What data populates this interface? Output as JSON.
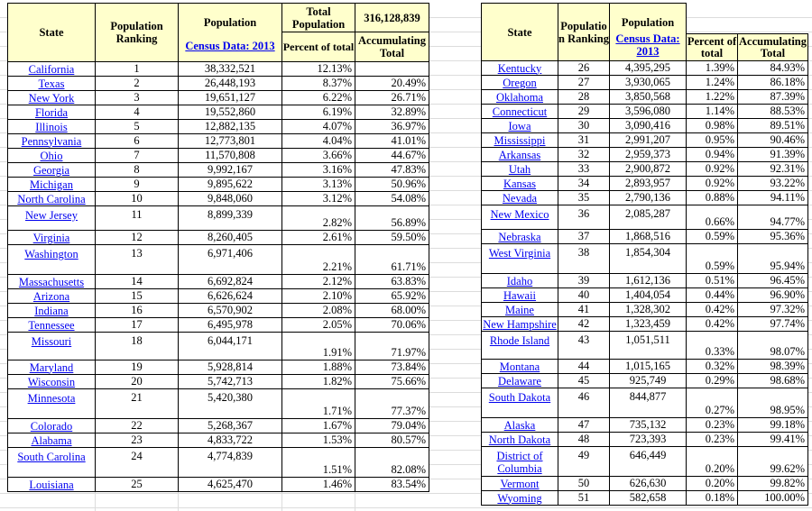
{
  "colors": {
    "header_bg": "#ffffcc",
    "link_blue": "#0000ee",
    "border": "#000000",
    "gridline": "#dcdcdc"
  },
  "header": {
    "state": "State",
    "ranking": "Population Ranking",
    "population": "Population",
    "census_link": "Census Data: 2013",
    "total_population_label": "Total Population",
    "total_population_value": "316,128,839",
    "percent": "Percent of total",
    "accumulating": "Accumulating Total"
  },
  "left_table": {
    "rows": [
      {
        "state": "California",
        "rank": "1",
        "population": "38,332,521",
        "percent": "12.13%",
        "accumulating": ""
      },
      {
        "state": "Texas",
        "rank": "2",
        "population": "26,448,193",
        "percent": "8.37%",
        "accumulating": "20.49%"
      },
      {
        "state": "New York",
        "rank": "3",
        "population": "19,651,127",
        "percent": "6.22%",
        "accumulating": "26.71%"
      },
      {
        "state": "Florida",
        "rank": "4",
        "population": "19,552,860",
        "percent": "6.19%",
        "accumulating": "32.89%"
      },
      {
        "state": "Illinois",
        "rank": "5",
        "population": "12,882,135",
        "percent": "4.07%",
        "accumulating": "36.97%"
      },
      {
        "state": "Pennsylvania",
        "rank": "6",
        "population": "12,773,801",
        "percent": "4.04%",
        "accumulating": "41.01%"
      },
      {
        "state": "Ohio",
        "rank": "7",
        "population": "11,570,808",
        "percent": "3.66%",
        "accumulating": "44.67%"
      },
      {
        "state": "Georgia",
        "rank": "8",
        "population": "9,992,167",
        "percent": "3.16%",
        "accumulating": "47.83%"
      },
      {
        "state": "Michigan",
        "rank": "9",
        "population": "9,895,622",
        "percent": "3.13%",
        "accumulating": "50.96%"
      },
      {
        "state": "North Carolina",
        "rank": "10",
        "population": "9,848,060",
        "percent": "3.12%",
        "accumulating": "54.08%"
      },
      {
        "state": "New Jersey",
        "rank": "11",
        "population": "8,899,339",
        "percent": "2.82%",
        "accumulating": "56.89%",
        "tall": true
      },
      {
        "state": "Virginia",
        "rank": "12",
        "population": "8,260,405",
        "percent": "2.61%",
        "accumulating": "59.50%"
      },
      {
        "state": "Washington",
        "rank": "13",
        "population": "6,971,406",
        "percent": "2.21%",
        "accumulating": "61.71%",
        "tall": true
      },
      {
        "state": "Massachusetts",
        "rank": "14",
        "population": "6,692,824",
        "percent": "2.12%",
        "accumulating": "63.83%"
      },
      {
        "state": "Arizona",
        "rank": "15",
        "population": "6,626,624",
        "percent": "2.10%",
        "accumulating": "65.92%"
      },
      {
        "state": "Indiana",
        "rank": "16",
        "population": "6,570,902",
        "percent": "2.08%",
        "accumulating": "68.00%"
      },
      {
        "state": "Tennessee",
        "rank": "17",
        "population": "6,495,978",
        "percent": "2.05%",
        "accumulating": "70.06%"
      },
      {
        "state": "Missouri",
        "rank": "18",
        "population": "6,044,171",
        "percent": "1.91%",
        "accumulating": "71.97%",
        "tall": true
      },
      {
        "state": "Maryland",
        "rank": "19",
        "population": "5,928,814",
        "percent": "1.88%",
        "accumulating": "73.84%"
      },
      {
        "state": "Wisconsin",
        "rank": "20",
        "population": "5,742,713",
        "percent": "1.82%",
        "accumulating": "75.66%"
      },
      {
        "state": "Minnesota",
        "rank": "21",
        "population": "5,420,380",
        "percent": "1.71%",
        "accumulating": "77.37%",
        "tall": true
      },
      {
        "state": "Colorado",
        "rank": "22",
        "population": "5,268,367",
        "percent": "1.67%",
        "accumulating": "79.04%"
      },
      {
        "state": "Alabama",
        "rank": "23",
        "population": "4,833,722",
        "percent": "1.53%",
        "accumulating": "80.57%"
      },
      {
        "state": "South Carolina",
        "rank": "24",
        "population": "4,774,839",
        "percent": "1.51%",
        "accumulating": "82.08%",
        "tall": true
      },
      {
        "state": "Louisiana",
        "rank": "25",
        "population": "4,625,470",
        "percent": "1.46%",
        "accumulating": "83.54%"
      }
    ]
  },
  "right_table": {
    "rows": [
      {
        "state": "Kentucky",
        "rank": "26",
        "population": "4,395,295",
        "percent": "1.39%",
        "accumulating": "84.93%"
      },
      {
        "state": "Oregon",
        "rank": "27",
        "population": "3,930,065",
        "percent": "1.24%",
        "accumulating": "86.18%"
      },
      {
        "state": "Oklahoma",
        "rank": "28",
        "population": "3,850,568",
        "percent": "1.22%",
        "accumulating": "87.39%"
      },
      {
        "state": "Connecticut",
        "rank": "29",
        "population": "3,596,080",
        "percent": "1.14%",
        "accumulating": "88.53%"
      },
      {
        "state": "Iowa",
        "rank": "30",
        "population": "3,090,416",
        "percent": "0.98%",
        "accumulating": "89.51%"
      },
      {
        "state": "Mississippi",
        "rank": "31",
        "population": "2,991,207",
        "percent": "0.95%",
        "accumulating": "90.46%"
      },
      {
        "state": "Arkansas",
        "rank": "32",
        "population": "2,959,373",
        "percent": "0.94%",
        "accumulating": "91.39%"
      },
      {
        "state": "Utah",
        "rank": "33",
        "population": "2,900,872",
        "percent": "0.92%",
        "accumulating": "92.31%"
      },
      {
        "state": "Kansas",
        "rank": "34",
        "population": "2,893,957",
        "percent": "0.92%",
        "accumulating": "93.22%"
      },
      {
        "state": "Nevada",
        "rank": "35",
        "population": "2,790,136",
        "percent": "0.88%",
        "accumulating": "94.11%"
      },
      {
        "state": "New Mexico",
        "rank": "36",
        "population": "2,085,287",
        "percent": "0.66%",
        "accumulating": "94.77%",
        "tall": true
      },
      {
        "state": "Nebraska",
        "rank": "37",
        "population": "1,868,516",
        "percent": "0.59%",
        "accumulating": "95.36%"
      },
      {
        "state": "West Virginia",
        "rank": "38",
        "population": "1,854,304",
        "percent": "0.59%",
        "accumulating": "95.94%",
        "tall": true
      },
      {
        "state": "Idaho",
        "rank": "39",
        "population": "1,612,136",
        "percent": "0.51%",
        "accumulating": "96.45%"
      },
      {
        "state": "Hawaii",
        "rank": "40",
        "population": "1,404,054",
        "percent": "0.44%",
        "accumulating": "96.90%"
      },
      {
        "state": "Maine",
        "rank": "41",
        "population": "1,328,302",
        "percent": "0.42%",
        "accumulating": "97.32%"
      },
      {
        "state": "New Hampshire",
        "rank": "42",
        "population": "1,323,459",
        "percent": "0.42%",
        "accumulating": "97.74%"
      },
      {
        "state": "Rhode Island",
        "rank": "43",
        "population": "1,051,511",
        "percent": "0.33%",
        "accumulating": "98.07%",
        "tall": true
      },
      {
        "state": "Montana",
        "rank": "44",
        "population": "1,015,165",
        "percent": "0.32%",
        "accumulating": "98.39%"
      },
      {
        "state": "Delaware",
        "rank": "45",
        "population": "925,749",
        "percent": "0.29%",
        "accumulating": "98.68%"
      },
      {
        "state": "South Dakota",
        "rank": "46",
        "population": "844,877",
        "percent": "0.27%",
        "accumulating": "98.95%",
        "tall": true
      },
      {
        "state": "Alaska",
        "rank": "47",
        "population": "735,132",
        "percent": "0.23%",
        "accumulating": "99.18%"
      },
      {
        "state": "North Dakota",
        "rank": "48",
        "population": "723,393",
        "percent": "0.23%",
        "accumulating": "99.41%"
      },
      {
        "state": "District of Columbia",
        "rank": "49",
        "population": "646,449",
        "percent": "0.20%",
        "accumulating": "99.62%",
        "tall": true
      },
      {
        "state": "Vermont",
        "rank": "50",
        "population": "626,630",
        "percent": "0.20%",
        "accumulating": "99.82%"
      },
      {
        "state": "Wyoming",
        "rank": "51",
        "population": "582,658",
        "percent": "0.18%",
        "accumulating": "100.00%"
      }
    ]
  }
}
